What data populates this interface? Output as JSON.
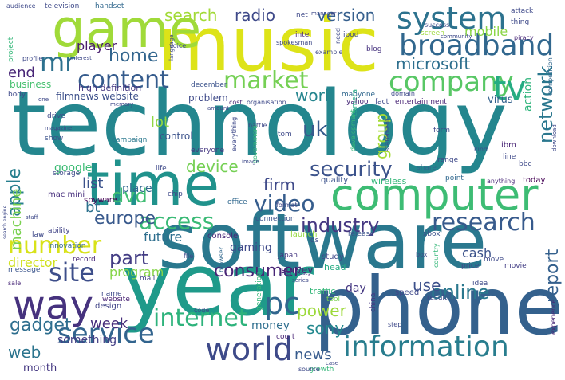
{
  "words": [
    {
      "text": "technology",
      "color": "#24868e",
      "weight": 1.0
    },
    {
      "text": "software",
      "color": "#2a788e",
      "weight": 0.86
    },
    {
      "text": "phone",
      "color": "#34618d",
      "weight": 0.84
    },
    {
      "text": "year",
      "color": "#1f9a8a",
      "weight": 0.82
    },
    {
      "text": "music",
      "color": "#dde318",
      "weight": 0.78
    },
    {
      "text": "time",
      "color": "#20928c",
      "weight": 0.72
    },
    {
      "text": "computer",
      "color": "#3dbc74",
      "weight": 0.66
    },
    {
      "text": "game",
      "color": "#a0da39",
      "weight": 0.6
    },
    {
      "text": "way",
      "color": "#46327e",
      "weight": 0.58
    },
    {
      "text": "world",
      "color": "#3e4a89",
      "weight": 0.48
    },
    {
      "text": "information",
      "color": "#287d8e",
      "weight": 0.48
    },
    {
      "text": "system",
      "color": "#2c728e",
      "weight": 0.47
    },
    {
      "text": "broadband",
      "color": "#31678e",
      "weight": 0.45
    },
    {
      "text": "service",
      "color": "#32648e",
      "weight": 0.44
    },
    {
      "text": "company",
      "color": "#58c765",
      "weight": 0.44
    },
    {
      "text": "pc",
      "color": "#31668e",
      "weight": 0.44
    },
    {
      "text": "mr",
      "color": "#2d718e",
      "weight": 0.42
    },
    {
      "text": "tv",
      "color": "#25ac82",
      "weight": 0.42
    },
    {
      "text": "research",
      "color": "#375a8c",
      "weight": 0.4
    },
    {
      "text": "access",
      "color": "#3aba76",
      "weight": 0.4
    },
    {
      "text": "content",
      "color": "#365c8d",
      "weight": 0.4
    },
    {
      "text": "market",
      "color": "#75d054",
      "weight": 0.38
    },
    {
      "text": "number",
      "color": "#d8e219",
      "weight": 0.38
    },
    {
      "text": "site",
      "color": "#3d4e8a",
      "weight": 0.38
    },
    {
      "text": "internet",
      "color": "#2eb37c",
      "weight": 0.36
    },
    {
      "text": "video",
      "color": "#365d8d",
      "weight": 0.36
    },
    {
      "text": "security",
      "color": "#3b528b",
      "weight": 0.34
    },
    {
      "text": "industry",
      "color": "#453781",
      "weight": 0.34
    },
    {
      "text": "europe",
      "color": "#38598c",
      "weight": 0.32
    },
    {
      "text": "network",
      "color": "#2a778e",
      "weight": 0.32
    },
    {
      "text": "home",
      "color": "#32658e",
      "weight": 0.32
    },
    {
      "text": "part",
      "color": "#433d84",
      "weight": 0.32
    },
    {
      "text": "online",
      "color": "#2a788e",
      "weight": 0.32
    },
    {
      "text": "dvd",
      "color": "#3fbc73",
      "weight": 0.3
    },
    {
      "text": "report",
      "color": "#34608d",
      "weight": 0.3
    },
    {
      "text": "gadget",
      "color": "#2e6e8e",
      "weight": 0.3
    },
    {
      "text": "apple",
      "color": "#277f8e",
      "weight": 0.3
    },
    {
      "text": "consumer",
      "color": "#482576",
      "weight": 0.3
    },
    {
      "text": "device",
      "color": "#75d054",
      "weight": 0.28
    },
    {
      "text": "firm",
      "color": "#3e4989",
      "weight": 0.28
    },
    {
      "text": "uk",
      "color": "#375b8d",
      "weight": 0.28
    },
    {
      "text": "web",
      "color": "#2b748e",
      "weight": 0.28
    },
    {
      "text": "microsoft",
      "color": "#2e6f8e",
      "weight": 0.26
    },
    {
      "text": "sony",
      "color": "#23888e",
      "weight": 0.26
    },
    {
      "text": "power",
      "color": "#9dd93b",
      "weight": 0.26
    },
    {
      "text": "work",
      "color": "#25858e",
      "weight": 0.26
    },
    {
      "text": "use",
      "color": "#3c508b",
      "weight": 0.26
    },
    {
      "text": "version",
      "color": "#355f8d",
      "weight": 0.25
    },
    {
      "text": "search",
      "color": "#a2da37",
      "weight": 0.25
    },
    {
      "text": "group",
      "color": "#a5db36",
      "weight": 0.25
    },
    {
      "text": "radio",
      "color": "#3e4989",
      "weight": 0.25
    },
    {
      "text": "week",
      "color": "#472d7b",
      "weight": 0.24
    },
    {
      "text": "news",
      "color": "#375b8d",
      "weight": 0.24
    },
    {
      "text": "machine",
      "color": "#7ad151",
      "weight": 0.22
    },
    {
      "text": "end",
      "color": "#482677",
      "weight": 0.22
    },
    {
      "text": "player",
      "color": "#481b6d",
      "weight": 0.21
    },
    {
      "text": "director",
      "color": "#d0e11c",
      "weight": 0.2
    },
    {
      "text": "bt",
      "color": "#2d718e",
      "weight": 0.2
    },
    {
      "text": "list",
      "color": "#3b528b",
      "weight": 0.2
    },
    {
      "text": "program",
      "color": "#86d549",
      "weight": 0.2
    },
    {
      "text": "lot",
      "color": "#90d743",
      "weight": 0.2
    },
    {
      "text": "gaming",
      "color": "#3e4989",
      "weight": 0.19
    },
    {
      "text": "something",
      "color": "#433e85",
      "weight": 0.19
    },
    {
      "text": "google",
      "color": "#3dbc74",
      "weight": 0.19
    },
    {
      "text": "cash",
      "color": "#3b528b",
      "weight": 0.18
    },
    {
      "text": "future",
      "color": "#2e6e8e",
      "weight": 0.18
    },
    {
      "text": "mobile",
      "color": "#8bd646",
      "weight": 0.18
    },
    {
      "text": "money",
      "color": "#2e6e8e",
      "weight": 0.17
    },
    {
      "text": "action",
      "color": "#2fb47c",
      "weight": 0.17
    },
    {
      "text": "place",
      "color": "#31688e",
      "weight": 0.17
    },
    {
      "text": "month",
      "color": "#453882",
      "weight": 0.16
    },
    {
      "text": "survey",
      "color": "#482576",
      "weight": 0.15
    },
    {
      "text": "virus",
      "color": "#34618d",
      "weight": 0.15
    },
    {
      "text": "day",
      "color": "#453882",
      "weight": 0.15
    },
    {
      "text": "problem",
      "color": "#3e4a89",
      "weight": 0.15
    },
    {
      "text": "high definition",
      "color": "#453781",
      "weight": 0.15
    },
    {
      "text": "business",
      "color": "#46c06f",
      "weight": 0.14
    },
    {
      "text": "control",
      "color": "#3b528b",
      "weight": 0.14
    },
    {
      "text": "filmnews website",
      "color": "#3c4f8a",
      "weight": 0.14
    },
    {
      "text": "spyware",
      "color": "#440154",
      "weight": 0.13
    },
    {
      "text": "mac mini",
      "color": "#472f7d",
      "weight": 0.13
    },
    {
      "text": "wireless",
      "color": "#35b779",
      "weight": 0.13
    },
    {
      "text": "quality",
      "color": "#3b528b",
      "weight": 0.13
    },
    {
      "text": "design",
      "color": "#414487",
      "weight": 0.13
    },
    {
      "text": "speed",
      "color": "#3f4889",
      "weight": 0.13
    },
    {
      "text": "launch",
      "color": "#95d840",
      "weight": 0.13
    },
    {
      "text": "study",
      "color": "#3e4989",
      "weight": 0.13
    },
    {
      "text": "head",
      "color": "#25ab82",
      "weight": 0.13
    },
    {
      "text": "console",
      "color": "#482878",
      "weight": 0.13
    },
    {
      "text": "entertainment",
      "color": "#482475",
      "weight": 0.12
    },
    {
      "text": "fact",
      "color": "#3e4989",
      "weight": 0.12
    },
    {
      "text": "camera",
      "color": "#22a884",
      "weight": 0.12
    },
    {
      "text": "ibm",
      "color": "#482475",
      "weight": 0.12
    },
    {
      "text": "line",
      "color": "#3e4989",
      "weight": 0.12
    },
    {
      "text": "campaign",
      "color": "#2a788e",
      "weight": 0.12
    },
    {
      "text": "everyone",
      "color": "#453781",
      "weight": 0.12
    },
    {
      "text": "mail",
      "color": "#414487",
      "weight": 0.12
    },
    {
      "text": "ability",
      "color": "#414487",
      "weight": 0.11
    },
    {
      "text": "law",
      "color": "#3e4989",
      "weight": 0.11
    },
    {
      "text": "message",
      "color": "#3a548c",
      "weight": 0.11
    },
    {
      "text": "record",
      "color": "#482878",
      "weight": 0.11
    },
    {
      "text": "innovation",
      "color": "#31688e",
      "weight": 0.11
    },
    {
      "text": "website",
      "color": "#482173",
      "weight": 0.11
    },
    {
      "text": "release",
      "color": "#3b528b",
      "weight": 0.11
    },
    {
      "text": "xbox",
      "color": "#3b528b",
      "weight": 0.11
    },
    {
      "text": "connection",
      "color": "#3b528b",
      "weight": 0.11
    },
    {
      "text": "ipod",
      "color": "#3e4989",
      "weight": 0.11
    },
    {
      "text": "intel",
      "color": "#482878",
      "weight": 0.11
    },
    {
      "text": "today",
      "color": "#440154",
      "weight": 0.11
    },
    {
      "text": "movie",
      "color": "#433e85",
      "weight": 0.11
    },
    {
      "text": "idea",
      "color": "#3e4989",
      "weight": 0.1
    },
    {
      "text": "growth",
      "color": "#35b779",
      "weight": 0.1
    },
    {
      "text": "court",
      "color": "#482576",
      "weight": 0.1
    },
    {
      "text": "japan",
      "color": "#453781",
      "weight": 0.1
    },
    {
      "text": "tool",
      "color": "#7ad151",
      "weight": 0.1
    },
    {
      "text": "result",
      "color": "#3e4989",
      "weight": 0.1
    },
    {
      "text": "blog",
      "color": "#46327e",
      "weight": 0.1
    },
    {
      "text": "screen",
      "color": "#9dd93b",
      "weight": 0.1
    },
    {
      "text": "manyone",
      "color": "#31688e",
      "weight": 0.1
    },
    {
      "text": "yahoo",
      "color": "#482878",
      "weight": 0.1
    },
    {
      "text": "china",
      "color": "#453781",
      "weight": 0.09
    },
    {
      "text": "range",
      "color": "#3e4989",
      "weight": 0.09
    },
    {
      "text": "point",
      "color": "#31688e",
      "weight": 0.09
    },
    {
      "text": "anything",
      "color": "#482878",
      "weight": 0.09
    },
    {
      "text": "bbc",
      "color": "#3e4989",
      "weight": 0.09
    },
    {
      "text": "office",
      "color": "#31688e",
      "weight": 0.09
    },
    {
      "text": "storage",
      "color": "#3e4989",
      "weight": 0.09
    },
    {
      "text": "show",
      "color": "#3b528b",
      "weight": 0.09
    },
    {
      "text": "drive",
      "color": "#3e4989",
      "weight": 0.09
    },
    {
      "text": "television",
      "color": "#3e4989",
      "weight": 0.09
    },
    {
      "text": "handset",
      "color": "#31688e",
      "weight": 0.09
    },
    {
      "text": "december",
      "color": "#3b528b",
      "weight": 0.09
    },
    {
      "text": "cost",
      "color": "#482878",
      "weight": 0.09
    },
    {
      "text": "organisation",
      "color": "#3e4989",
      "weight": 0.09
    },
    {
      "text": "domain",
      "color": "#3e4989",
      "weight": 0.09
    },
    {
      "text": "body",
      "color": "#3e4989",
      "weight": 0.09
    },
    {
      "text": "chip",
      "color": "#3e4989",
      "weight": 0.09
    },
    {
      "text": "life",
      "color": "#3e4989",
      "weight": 0.09
    },
    {
      "text": "share",
      "color": "#31688e",
      "weight": 0.09
    },
    {
      "text": "experience",
      "color": "#482878",
      "weight": 0.09
    },
    {
      "text": "sale",
      "color": "#482878",
      "weight": 0.09
    },
    {
      "text": "name",
      "color": "#3e4989",
      "weight": 0.09
    },
    {
      "text": "step",
      "color": "#3e4989",
      "weight": 0.08
    },
    {
      "text": "generation",
      "color": "#35b779",
      "weight": 0.08
    },
    {
      "text": "browser",
      "color": "#31688e",
      "weight": 0.08
    },
    {
      "text": "code",
      "color": "#3e4989",
      "weight": 0.08
    },
    {
      "text": "source",
      "color": "#3e4989",
      "weight": 0.08
    },
    {
      "text": "traffic",
      "color": "#35b779",
      "weight": 0.08
    },
    {
      "text": "price",
      "color": "#3e4989",
      "weight": 0.08
    },
    {
      "text": "box",
      "color": "#3e4989",
      "weight": 0.08
    },
    {
      "text": "country",
      "color": "#35b779",
      "weight": 0.08
    },
    {
      "text": "move",
      "color": "#3e4989",
      "weight": 0.08
    },
    {
      "text": "form",
      "color": "#3e4989",
      "weight": 0.08
    },
    {
      "text": "development",
      "color": "#35b779",
      "weight": 0.08
    },
    {
      "text": "statement",
      "color": "#3e4989",
      "weight": 0.08
    },
    {
      "text": "kind",
      "color": "#3e4989",
      "weight": 0.08
    },
    {
      "text": "attack",
      "color": "#3e4989",
      "weight": 0.08
    },
    {
      "text": "thing",
      "color": "#3e4989",
      "weight": 0.08
    },
    {
      "text": "piracy",
      "color": "#482878",
      "weight": 0.08
    },
    {
      "text": "competition",
      "color": "#31688e",
      "weight": 0.08
    },
    {
      "text": "download",
      "color": "#3e4989",
      "weight": 0.08
    },
    {
      "text": "success",
      "color": "#3e4989",
      "weight": 0.08
    },
    {
      "text": "community",
      "color": "#3e4989",
      "weight": 0.08
    },
    {
      "text": "spokesman",
      "color": "#3e4989",
      "weight": 0.08
    },
    {
      "text": "net",
      "color": "#3e4989",
      "weight": 0.08
    },
    {
      "text": "need",
      "color": "#3e4989",
      "weight": 0.08
    },
    {
      "text": "example",
      "color": "#3e4989",
      "weight": 0.08
    },
    {
      "text": "manager",
      "color": "#3e4989",
      "weight": 0.08
    },
    {
      "text": "project",
      "color": "#35b779",
      "weight": 0.08
    },
    {
      "text": "profile",
      "color": "#3e4989",
      "weight": 0.08
    },
    {
      "text": "interest",
      "color": "#3e4989",
      "weight": 0.08
    },
    {
      "text": "audience",
      "color": "#3e4989",
      "weight": 0.08
    },
    {
      "text": "voice",
      "color": "#3e4989",
      "weight": 0.08
    },
    {
      "text": "language",
      "color": "#3e4989",
      "weight": 0.08
    },
    {
      "text": "memory",
      "color": "#3e4989",
      "weight": 0.08
    },
    {
      "text": "magazine",
      "color": "#3e4989",
      "weight": 0.08
    },
    {
      "text": "government",
      "color": "#35b779",
      "weight": 0.08
    },
    {
      "text": "image",
      "color": "#3e4989",
      "weight": 0.08
    },
    {
      "text": "tom",
      "color": "#3e4989",
      "weight": 0.08
    },
    {
      "text": "battle",
      "color": "#3e4989",
      "weight": 0.08
    },
    {
      "text": "format",
      "color": "#3e4989",
      "weight": 0.08
    },
    {
      "text": "file",
      "color": "#3e4989",
      "weight": 0.08
    },
    {
      "text": "staff",
      "color": "#3e4989",
      "weight": 0.08
    },
    {
      "text": "one",
      "color": "#3e4989",
      "weight": 0.08
    },
    {
      "text": "ds",
      "color": "#3e4989",
      "weight": 0.08
    },
    {
      "text": "everything",
      "color": "#3e4989",
      "weight": 0.08
    },
    {
      "text": "chief",
      "color": "#3e4989",
      "weight": 0.08
    },
    {
      "text": "rest",
      "color": "#3e4989",
      "weight": 0.08
    },
    {
      "text": "series",
      "color": "#3e4989",
      "weight": 0.08
    },
    {
      "text": "amount",
      "color": "#3e4989",
      "weight": 0.08
    },
    {
      "text": "case",
      "color": "#3e4989",
      "weight": 0.08
    },
    {
      "text": "search engine",
      "color": "#3e4989",
      "weight": 0.08
    }
  ]
}
